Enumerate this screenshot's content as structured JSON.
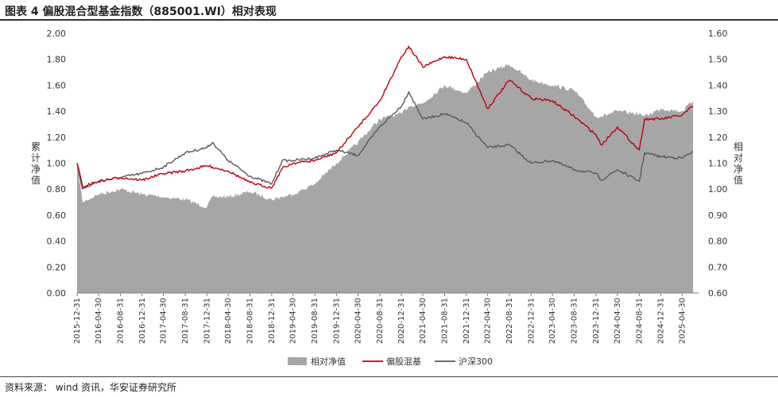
{
  "figure": {
    "title": "图表 4 偏股混合型基金指数（885001.WI）相对表现",
    "source": "资料来源： wind 资讯，华安证券研究所"
  },
  "colors": {
    "relative": "#a6a6a6",
    "fund_index": "#c0000b",
    "csi300": "#595959"
  },
  "chart_data": {
    "type": "line",
    "title": "偏股混合型基金指数（885001.WI）相对表现",
    "ylabel": "累计净值",
    "y2label": "相对净值",
    "ylim": [
      0,
      2.0
    ],
    "y2lim": [
      0.6,
      1.6
    ],
    "yticks": [
      "0.00",
      "0.20",
      "0.40",
      "0.60",
      "0.80",
      "1.00",
      "1.20",
      "1.40",
      "1.60",
      "1.80",
      "2.00"
    ],
    "y2ticks": [
      "0.60",
      "0.70",
      "0.80",
      "0.90",
      "1.00",
      "1.10",
      "1.20",
      "1.30",
      "1.40",
      "1.50",
      "1.60"
    ],
    "xticks": [
      "2015-12-31",
      "2016-04-30",
      "2016-08-31",
      "2016-12-31",
      "2017-04-30",
      "2017-08-31",
      "2017-12-31",
      "2018-04-30",
      "2018-08-31",
      "2018-12-31",
      "2019-04-30",
      "2019-08-31",
      "2019-12-31",
      "2020-04-30",
      "2020-08-31",
      "2020-12-31",
      "2021-04-30",
      "2021-08-31",
      "2021-12-31",
      "2022-04-30",
      "2022-08-31",
      "2022-12-31",
      "2023-04-30",
      "2023-08-31",
      "2023-12-31",
      "2024-04-30",
      "2024-08-31",
      "2024-12-31",
      "2025-04-30"
    ],
    "x": [
      "2015-12-31",
      "2016-01-31",
      "2016-04-30",
      "2016-08-31",
      "2016-12-31",
      "2017-04-30",
      "2017-08-31",
      "2017-12-31",
      "2018-01-31",
      "2018-04-30",
      "2018-08-31",
      "2018-12-31",
      "2019-02-28",
      "2019-04-30",
      "2019-08-31",
      "2019-12-31",
      "2020-04-30",
      "2020-08-31",
      "2020-12-31",
      "2021-02-10",
      "2021-04-30",
      "2021-08-31",
      "2021-12-31",
      "2022-04-30",
      "2022-08-31",
      "2022-12-31",
      "2023-04-30",
      "2023-08-31",
      "2023-12-31",
      "2024-01-31",
      "2024-04-30",
      "2024-08-31",
      "2024-09-30",
      "2024-12-31",
      "2025-04-30",
      "2025-06-30"
    ],
    "series": [
      {
        "name": "相对净值",
        "style": "area",
        "axis": "right",
        "values": [
          1.1,
          0.95,
          0.98,
          1.0,
          0.98,
          0.97,
          0.96,
          0.93,
          0.97,
          0.97,
          0.99,
          0.96,
          0.97,
          0.98,
          1.02,
          1.1,
          1.18,
          1.27,
          1.29,
          1.32,
          1.33,
          1.4,
          1.37,
          1.45,
          1.48,
          1.42,
          1.4,
          1.38,
          1.28,
          1.28,
          1.3,
          1.29,
          1.28,
          1.31,
          1.3,
          1.34
        ]
      },
      {
        "name": "偏股混基",
        "style": "line",
        "axis": "left",
        "values": [
          1.0,
          0.82,
          0.86,
          0.89,
          0.87,
          0.92,
          0.94,
          0.98,
          0.97,
          0.94,
          0.85,
          0.81,
          0.96,
          1.0,
          1.02,
          1.08,
          1.28,
          1.48,
          1.82,
          1.9,
          1.74,
          1.82,
          1.8,
          1.42,
          1.64,
          1.5,
          1.48,
          1.36,
          1.22,
          1.14,
          1.28,
          1.1,
          1.34,
          1.34,
          1.37,
          1.44
        ]
      },
      {
        "name": "沪深300",
        "style": "line",
        "axis": "left",
        "values": [
          1.0,
          0.8,
          0.86,
          0.89,
          0.92,
          0.97,
          1.08,
          1.12,
          1.16,
          1.02,
          0.9,
          0.84,
          1.02,
          1.02,
          1.04,
          1.1,
          1.06,
          1.28,
          1.44,
          1.55,
          1.34,
          1.38,
          1.31,
          1.12,
          1.14,
          1.0,
          1.02,
          0.95,
          0.92,
          0.87,
          0.95,
          0.86,
          1.08,
          1.05,
          1.04,
          1.09
        ]
      }
    ],
    "legend": {
      "position": "bottom",
      "items": [
        "相对净值",
        "偏股混基",
        "沪深300"
      ]
    },
    "grid": false
  }
}
